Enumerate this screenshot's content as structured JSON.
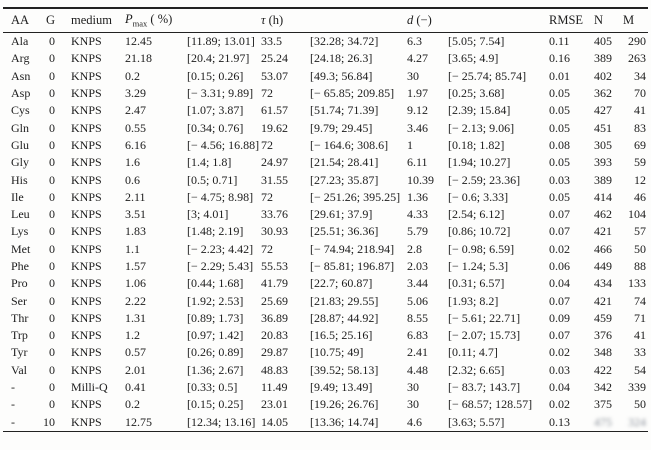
{
  "table": {
    "headers": {
      "aa": "AA",
      "g": "G",
      "medium": "medium",
      "pmax_base": "P",
      "pmax_sub": "max",
      "pmax_unit": " ( %)",
      "tau_base": "τ",
      "tau_unit": " (h)",
      "d_base": "d",
      "d_unit": " (−)",
      "rmse": "RMSE",
      "n": "N",
      "m": "M"
    },
    "rows": [
      {
        "aa": "Ala",
        "g": "0",
        "medium": "KNPS",
        "pmax": "12.45",
        "pmax_ci": "[11.89; 13.01]",
        "tau": "33.5",
        "tau_ci": "[32.28; 34.72]",
        "d": "6.3",
        "d_ci": "[5.05; 7.54]",
        "rmse": "0.11",
        "n": "405",
        "m": "290"
      },
      {
        "aa": "Arg",
        "g": "0",
        "medium": "KNPS",
        "pmax": "21.18",
        "pmax_ci": "[20.4; 21.97]",
        "tau": "25.24",
        "tau_ci": "[24.18; 26.3]",
        "d": "4.27",
        "d_ci": "[3.65; 4.9]",
        "rmse": "0.16",
        "n": "389",
        "m": "263"
      },
      {
        "aa": "Asn",
        "g": "0",
        "medium": "KNPS",
        "pmax": "0.2",
        "pmax_ci": "[0.15; 0.26]",
        "tau": "53.07",
        "tau_ci": "[49.3; 56.84]",
        "d": "30",
        "d_ci": "[− 25.74; 85.74]",
        "rmse": "0.01",
        "n": "402",
        "m": "34"
      },
      {
        "aa": "Asp",
        "g": "0",
        "medium": "KNPS",
        "pmax": "3.29",
        "pmax_ci": "[− 3.31; 9.89]",
        "tau": "72",
        "tau_ci": "[− 65.85; 209.85]",
        "d": "1.97",
        "d_ci": "[0.25; 3.68]",
        "rmse": "0.05",
        "n": "362",
        "m": "70"
      },
      {
        "aa": "Cys",
        "g": "0",
        "medium": "KNPS",
        "pmax": "2.47",
        "pmax_ci": "[1.07; 3.87]",
        "tau": "61.57",
        "tau_ci": "[51.74; 71.39]",
        "d": "9.12",
        "d_ci": "[2.39; 15.84]",
        "rmse": "0.05",
        "n": "427",
        "m": "41"
      },
      {
        "aa": "Gln",
        "g": "0",
        "medium": "KNPS",
        "pmax": "0.55",
        "pmax_ci": "[0.34; 0.76]",
        "tau": "19.62",
        "tau_ci": "[9.79; 29.45]",
        "d": "3.46",
        "d_ci": "[− 2.13; 9.06]",
        "rmse": "0.05",
        "n": "451",
        "m": "83"
      },
      {
        "aa": "Glu",
        "g": "0",
        "medium": "KNPS",
        "pmax": "6.16",
        "pmax_ci": "[− 4.56; 16.88]",
        "tau": "72",
        "tau_ci": "[− 164.6; 308.6]",
        "d": "1",
        "d_ci": "[0.18; 1.82]",
        "rmse": "0.08",
        "n": "305",
        "m": "69"
      },
      {
        "aa": "Gly",
        "g": "0",
        "medium": "KNPS",
        "pmax": "1.6",
        "pmax_ci": "[1.4; 1.8]",
        "tau": "24.97",
        "tau_ci": "[21.54; 28.41]",
        "d": "6.11",
        "d_ci": "[1.94; 10.27]",
        "rmse": "0.05",
        "n": "393",
        "m": "59"
      },
      {
        "aa": "His",
        "g": "0",
        "medium": "KNPS",
        "pmax": "0.6",
        "pmax_ci": "[0.5; 0.71]",
        "tau": "31.55",
        "tau_ci": "[27.23; 35.87]",
        "d": "10.39",
        "d_ci": "[− 2.59; 23.36]",
        "rmse": "0.03",
        "n": "389",
        "m": "12"
      },
      {
        "aa": "Ile",
        "g": "0",
        "medium": "KNPS",
        "pmax": "2.11",
        "pmax_ci": "[− 4.75; 8.98]",
        "tau": "72",
        "tau_ci": "[− 251.26; 395.25]",
        "d": "1.36",
        "d_ci": "[− 0.6; 3.33]",
        "rmse": "0.05",
        "n": "414",
        "m": "46"
      },
      {
        "aa": "Leu",
        "g": "0",
        "medium": "KNPS",
        "pmax": "3.51",
        "pmax_ci": "[3; 4.01]",
        "tau": "33.76",
        "tau_ci": "[29.61; 37.9]",
        "d": "4.33",
        "d_ci": "[2.54; 6.12]",
        "rmse": "0.07",
        "n": "462",
        "m": "104"
      },
      {
        "aa": "Lys",
        "g": "0",
        "medium": "KNPS",
        "pmax": "1.83",
        "pmax_ci": "[1.48; 2.19]",
        "tau": "30.93",
        "tau_ci": "[25.51; 36.36]",
        "d": "5.79",
        "d_ci": "[0.86; 10.72]",
        "rmse": "0.07",
        "n": "421",
        "m": "57"
      },
      {
        "aa": "Met",
        "g": "0",
        "medium": "KNPS",
        "pmax": "1.1",
        "pmax_ci": "[− 2.23; 4.42]",
        "tau": "72",
        "tau_ci": "[− 74.94; 218.94]",
        "d": "2.8",
        "d_ci": "[− 0.98; 6.59]",
        "rmse": "0.02",
        "n": "466",
        "m": "50"
      },
      {
        "aa": "Phe",
        "g": "0",
        "medium": "KNPS",
        "pmax": "1.57",
        "pmax_ci": "[− 2.29; 5.43]",
        "tau": "55.53",
        "tau_ci": "[− 85.81; 196.87]",
        "d": "2.03",
        "d_ci": "[− 1.24; 5.3]",
        "rmse": "0.06",
        "n": "449",
        "m": "88"
      },
      {
        "aa": "Pro",
        "g": "0",
        "medium": "KNPS",
        "pmax": "1.06",
        "pmax_ci": "[0.44; 1.68]",
        "tau": "41.79",
        "tau_ci": "[22.7; 60.87]",
        "d": "3.44",
        "d_ci": "[0.31; 6.57]",
        "rmse": "0.04",
        "n": "434",
        "m": "133"
      },
      {
        "aa": "Ser",
        "g": "0",
        "medium": "KNPS",
        "pmax": "2.22",
        "pmax_ci": "[1.92; 2.53]",
        "tau": "25.69",
        "tau_ci": "[21.83; 29.55]",
        "d": "5.06",
        "d_ci": "[1.93; 8.2]",
        "rmse": "0.07",
        "n": "421",
        "m": "74"
      },
      {
        "aa": "Thr",
        "g": "0",
        "medium": "KNPS",
        "pmax": "1.31",
        "pmax_ci": "[0.89; 1.73]",
        "tau": "36.89",
        "tau_ci": "[28.87; 44.92]",
        "d": "8.55",
        "d_ci": "[− 5.61; 22.71]",
        "rmse": "0.09",
        "n": "459",
        "m": "71"
      },
      {
        "aa": "Trp",
        "g": "0",
        "medium": "KNPS",
        "pmax": "1.2",
        "pmax_ci": "[0.97; 1.42]",
        "tau": "20.83",
        "tau_ci": "[16.5; 25.16]",
        "d": "6.83",
        "d_ci": "[− 2.07; 15.73]",
        "rmse": "0.07",
        "n": "376",
        "m": "41"
      },
      {
        "aa": "Tyr",
        "g": "0",
        "medium": "KNPS",
        "pmax": "0.57",
        "pmax_ci": "[0.26; 0.89]",
        "tau": "29.87",
        "tau_ci": "[10.75; 49]",
        "d": "2.41",
        "d_ci": "[0.11; 4.7]",
        "rmse": "0.02",
        "n": "348",
        "m": "33"
      },
      {
        "aa": "Val",
        "g": "0",
        "medium": "KNPS",
        "pmax": "2.01",
        "pmax_ci": "[1.36; 2.67]",
        "tau": "48.83",
        "tau_ci": "[39.52; 58.13]",
        "d": "4.48",
        "d_ci": "[2.32; 6.65]",
        "rmse": "0.03",
        "n": "422",
        "m": "54"
      },
      {
        "aa": "-",
        "g": "0",
        "medium": "Milli-Q",
        "pmax": "0.41",
        "pmax_ci": "[0.33; 0.5]",
        "tau": "11.49",
        "tau_ci": "[9.49; 13.49]",
        "d": "30",
        "d_ci": "[− 83.7; 143.7]",
        "rmse": "0.04",
        "n": "342",
        "m": "339"
      },
      {
        "aa": "-",
        "g": "0",
        "medium": "KNPS",
        "pmax": "0.2",
        "pmax_ci": "[0.15; 0.25]",
        "tau": "23.01",
        "tau_ci": "[19.26; 26.76]",
        "d": "30",
        "d_ci": "[− 68.57; 128.57]",
        "rmse": "0.02",
        "n": "375",
        "m": "50"
      },
      {
        "aa": "-",
        "g": "10",
        "medium": "KNPS",
        "pmax": "12.75",
        "pmax_ci": "[12.34; 13.16]",
        "tau": "14.05",
        "tau_ci": "[13.36; 14.74]",
        "d": "4.6",
        "d_ci": "[3.63; 5.57]",
        "rmse": "0.13",
        "n": "475",
        "m": "324",
        "obscured": [
          "n",
          "m"
        ]
      }
    ]
  }
}
